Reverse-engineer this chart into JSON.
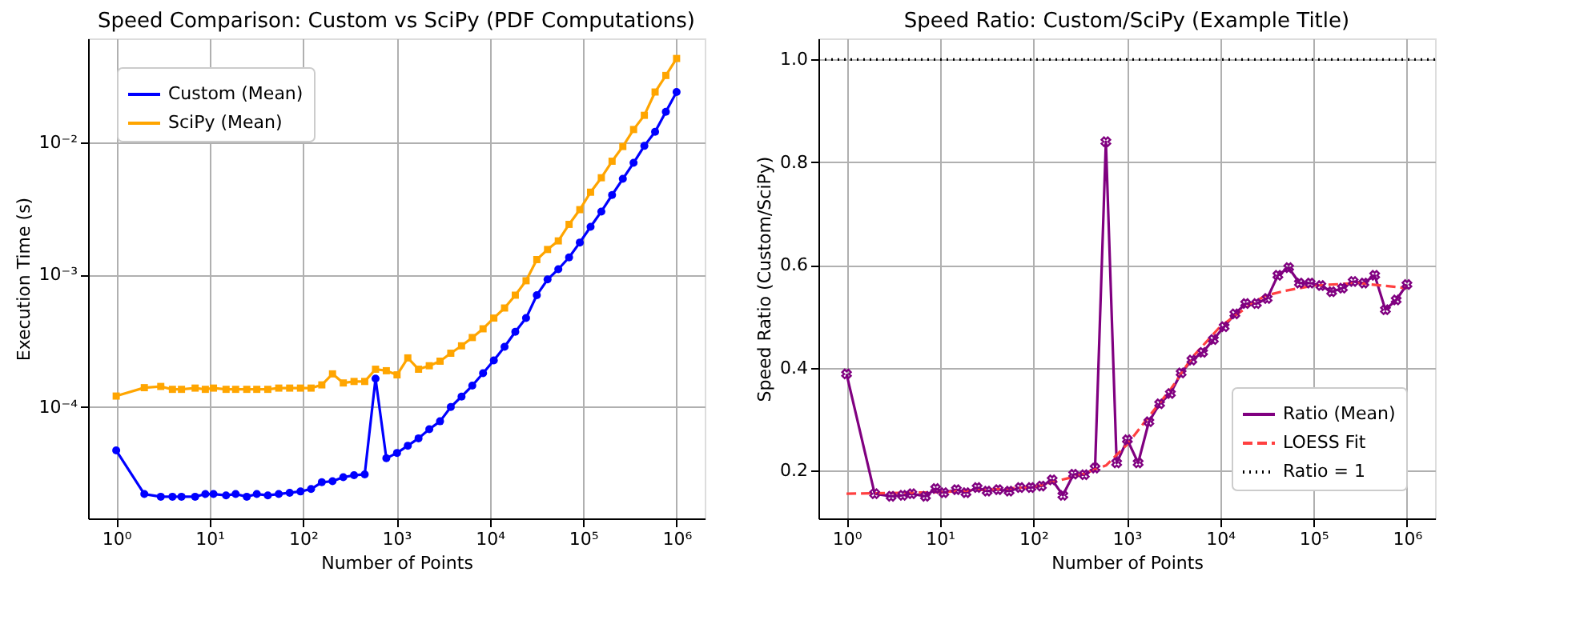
{
  "chart_data": [
    {
      "type": "line",
      "title": "Speed Comparison: Custom vs SciPy (PDF Computations)",
      "xlabel": "Number of Points",
      "ylabel": "Execution Time (s)",
      "log": "xy",
      "grid": true,
      "legend": "top left",
      "xlim": [
        0.5,
        2000000
      ],
      "ylim": [
        1.44e-05,
        0.061
      ],
      "xticks": [
        {
          "value": 1,
          "label": "10⁰"
        },
        {
          "value": 10,
          "label": "10¹"
        },
        {
          "value": 100,
          "label": "10²"
        },
        {
          "value": 1000,
          "label": "10³"
        },
        {
          "value": 10000,
          "label": "10⁴"
        },
        {
          "value": 100000,
          "label": "10⁵"
        },
        {
          "value": 1000000,
          "label": "10⁶"
        }
      ],
      "yticks": [
        {
          "value": 0.0001,
          "label": "10⁻⁴"
        },
        {
          "value": 0.001,
          "label": "10⁻³"
        },
        {
          "value": 0.01,
          "label": "10⁻²"
        }
      ],
      "x": [
        1,
        2,
        3,
        4,
        5,
        7,
        9,
        11,
        15,
        19,
        25,
        32,
        42,
        55,
        72,
        94,
        122,
        159,
        207,
        270,
        352,
        458,
        598,
        780,
        1016,
        1325,
        1726,
        2250,
        2933,
        3822,
        4983,
        6496,
        8467,
        11039,
        14388,
        18755,
        24450,
        31873,
        41543,
        54155,
        70592,
        92018,
        119947,
        156354,
        203810,
        265671,
        346308,
        451488,
        588536,
        767243,
        1000000
      ],
      "series": [
        {
          "name": "Custom (Mean)",
          "color": "#0000ff",
          "marker": "circle",
          "line_style": "solid",
          "values": [
            4.7e-05,
            2.2e-05,
            2.1e-05,
            2.1e-05,
            2.1e-05,
            2.1e-05,
            2.2e-05,
            2.2e-05,
            2.15e-05,
            2.2e-05,
            2.1e-05,
            2.2e-05,
            2.15e-05,
            2.2e-05,
            2.25e-05,
            2.3e-05,
            2.4e-05,
            2.7e-05,
            2.75e-05,
            2.95e-05,
            3.05e-05,
            3.1e-05,
            0.000164,
            4.1e-05,
            4.5e-05,
            5.1e-05,
            5.8e-05,
            6.8e-05,
            7.8e-05,
            0.0001,
            0.00012,
            0.000145,
            0.00018,
            0.000225,
            0.000285,
            0.00037,
            0.00047,
            0.0007,
            0.00092,
            0.0011,
            0.00135,
            0.00175,
            0.0023,
            0.003,
            0.004,
            0.0053,
            0.007,
            0.0094,
            0.012,
            0.017,
            0.024
          ]
        },
        {
          "name": "SciPy (Mean)",
          "color": "#ffa500",
          "marker": "square",
          "line_style": "solid",
          "values": [
            0.000121,
            0.00014,
            0.000143,
            0.000136,
            0.000136,
            0.000139,
            0.000136,
            0.000139,
            0.000136,
            0.000136,
            0.000136,
            0.000136,
            0.000136,
            0.000139,
            0.000139,
            0.000139,
            0.000139,
            0.000147,
            0.000178,
            0.000152,
            0.000156,
            0.000156,
            0.000193,
            0.000188,
            0.000175,
            0.000235,
            0.000193,
            0.000205,
            0.000222,
            0.000255,
            0.00029,
            0.000335,
            0.00039,
            0.00047,
            0.00056,
            0.0007,
            0.0009,
            0.0013,
            0.00155,
            0.0018,
            0.0024,
            0.0031,
            0.0042,
            0.0054,
            0.0072,
            0.0093,
            0.0125,
            0.016,
            0.024,
            0.032,
            0.043
          ]
        }
      ]
    },
    {
      "type": "line",
      "title": "Speed Ratio: Custom/SciPy (Example Title)",
      "xlabel": "Number of Points",
      "ylabel": "Speed Ratio (Custom/SciPy)",
      "log": "x",
      "grid": true,
      "legend": "bottom right",
      "xlim": [
        0.5,
        2000000
      ],
      "ylim": [
        0.107,
        1.041
      ],
      "xticks": [
        {
          "value": 1,
          "label": "10⁰"
        },
        {
          "value": 10,
          "label": "10¹"
        },
        {
          "value": 100,
          "label": "10²"
        },
        {
          "value": 1000,
          "label": "10³"
        },
        {
          "value": 10000,
          "label": "10⁴"
        },
        {
          "value": 100000,
          "label": "10⁵"
        },
        {
          "value": 1000000,
          "label": "10⁶"
        }
      ],
      "yticks": [
        0.2,
        0.4,
        0.6,
        0.8,
        {
          "value": 1,
          "label": "1.0"
        }
      ],
      "x": [
        1,
        2,
        3,
        4,
        5,
        7,
        9,
        11,
        15,
        19,
        25,
        32,
        42,
        55,
        72,
        94,
        122,
        159,
        207,
        270,
        352,
        458,
        598,
        780,
        1016,
        1325,
        1726,
        2250,
        2933,
        3822,
        4983,
        6496,
        8467,
        11039,
        14388,
        18755,
        24450,
        31873,
        41543,
        54155,
        70592,
        92018,
        119947,
        156354,
        203810,
        265671,
        346308,
        451488,
        588536,
        767243,
        1000000
      ],
      "series": [
        {
          "name": "Ratio (Mean)",
          "color": "#800080",
          "marker": "cross",
          "line_style": "solid",
          "values": [
            0.388,
            0.155,
            0.15,
            0.152,
            0.155,
            0.15,
            0.165,
            0.157,
            0.163,
            0.157,
            0.167,
            0.16,
            0.163,
            0.16,
            0.167,
            0.167,
            0.17,
            0.182,
            0.152,
            0.193,
            0.192,
            0.205,
            0.84,
            0.215,
            0.26,
            0.215,
            0.295,
            0.33,
            0.35,
            0.39,
            0.415,
            0.43,
            0.455,
            0.48,
            0.505,
            0.525,
            0.525,
            0.535,
            0.58,
            0.595,
            0.565,
            0.565,
            0.56,
            0.548,
            0.555,
            0.568,
            0.565,
            0.58,
            0.513,
            0.532,
            0.562
          ]
        },
        {
          "name": "LOESS Fit",
          "color": "#ff4040",
          "marker": "none",
          "line_style": "dashed",
          "x": [
            1,
            10,
            100,
            300,
            600,
            1000,
            2000,
            3000,
            5000,
            10000,
            20000,
            30000,
            50000,
            100000,
            300000,
            1000000
          ],
          "values": [
            0.155,
            0.158,
            0.168,
            0.19,
            0.21,
            0.25,
            0.32,
            0.36,
            0.42,
            0.48,
            0.52,
            0.54,
            0.55,
            0.56,
            0.565,
            0.555
          ]
        }
      ],
      "ref_lines": [
        {
          "axis": "y",
          "value": 1,
          "label": "Ratio = 1",
          "color": "#000000",
          "line_style": "dotted"
        }
      ]
    }
  ]
}
